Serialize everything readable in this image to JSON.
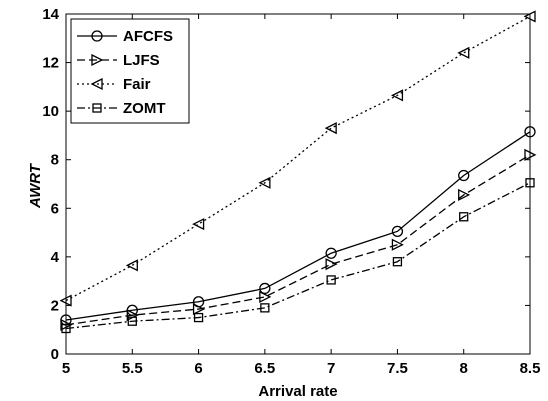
{
  "chart_data": {
    "type": "line",
    "xlabel": "Arrival rate",
    "ylabel": "AWRT",
    "xlim": [
      5,
      8.5
    ],
    "ylim": [
      0,
      14
    ],
    "x": [
      5,
      5.5,
      6,
      6.5,
      7,
      7.5,
      8,
      8.5
    ],
    "x_tick_labels": [
      "5",
      "5.5",
      "6",
      "6.5",
      "7",
      "7.5",
      "8",
      "8.5"
    ],
    "y_tick_labels": [
      "0",
      "2",
      "4",
      "6",
      "8",
      "10",
      "12",
      "14"
    ],
    "grid": false,
    "legend_position": "top-left",
    "series": [
      {
        "name": "AFCFS",
        "values": [
          1.4,
          1.8,
          2.15,
          2.7,
          4.15,
          5.05,
          7.35,
          9.15
        ],
        "line_style": "solid",
        "marker": "circle",
        "color": "#000000"
      },
      {
        "name": "LJFS",
        "values": [
          1.2,
          1.6,
          1.85,
          2.35,
          3.7,
          4.5,
          6.55,
          8.2
        ],
        "line_style": "dashed",
        "marker": "triangle-right",
        "color": "#000000"
      },
      {
        "name": "Fair",
        "values": [
          2.2,
          3.65,
          5.35,
          7.05,
          9.3,
          10.65,
          12.4,
          13.9
        ],
        "line_style": "dotted",
        "marker": "triangle-left",
        "color": "#000000"
      },
      {
        "name": "ZOMT",
        "values": [
          1.05,
          1.35,
          1.5,
          1.9,
          3.05,
          3.8,
          5.65,
          7.05
        ],
        "line_style": "dash-dot",
        "marker": "square",
        "color": "#000000"
      }
    ]
  }
}
